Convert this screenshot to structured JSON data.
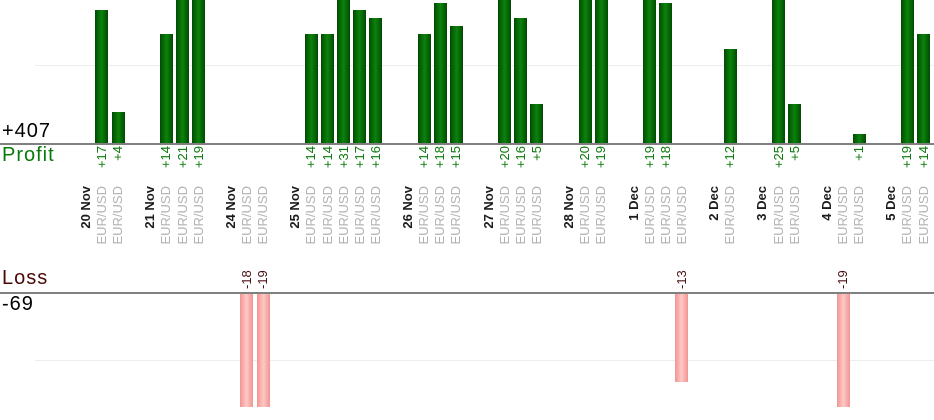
{
  "summary": {
    "profit_total": "+407",
    "profit_label": "Profit",
    "loss_label": "Loss",
    "loss_total": "-69"
  },
  "colors": {
    "profit_bar_edge": "#024a02",
    "profit_bar_mid": "#0b830b",
    "loss_bar_edge": "#f19494",
    "loss_bar_mid": "#fdc9c4",
    "profit_text": "#0a7a0a",
    "loss_value_text": "#471111",
    "loss_label_text": "#4c0808",
    "total_text": "#000000",
    "date_text": "#1c1c1c",
    "symbol_text": "#b2b2b2",
    "axis_line": "#808080",
    "gridline": "#ededed"
  },
  "chart_data": {
    "type": "bar",
    "layout": "dual panel: profit bars above shared category axis, loss bars below; rotated value and category labels; gridlines every 10 units",
    "grid_step": 10,
    "panels": {
      "profit": {
        "label": "Profit",
        "total": 407,
        "display_total": "+407"
      },
      "loss": {
        "label": "Loss",
        "total": -69,
        "display_total": "-69"
      }
    },
    "groups": [
      {
        "date": "20 Nov",
        "trades": [
          {
            "symbol": "EUR/USD",
            "value": 17
          },
          {
            "symbol": "EUR/USD",
            "value": 4
          }
        ]
      },
      {
        "date": "21 Nov",
        "trades": [
          {
            "symbol": "EUR/USD",
            "value": 14
          },
          {
            "symbol": "EUR/USD",
            "value": 21
          },
          {
            "symbol": "EUR/USD",
            "value": 19
          }
        ]
      },
      {
        "date": "24 Nov",
        "trades": [
          {
            "symbol": "EUR/USD",
            "value": -18
          },
          {
            "symbol": "EUR/USD",
            "value": -19
          }
        ]
      },
      {
        "date": "25 Nov",
        "trades": [
          {
            "symbol": "EUR/USD",
            "value": 14
          },
          {
            "symbol": "EUR/USD",
            "value": 14
          },
          {
            "symbol": "EUR/USD",
            "value": 31
          },
          {
            "symbol": "EUR/USD",
            "value": 17
          },
          {
            "symbol": "EUR/USD",
            "value": 16
          }
        ]
      },
      {
        "date": "26 Nov",
        "trades": [
          {
            "symbol": "EUR/USD",
            "value": 14
          },
          {
            "symbol": "EUR/USD",
            "value": 18
          },
          {
            "symbol": "EUR/USD",
            "value": 15
          }
        ]
      },
      {
        "date": "27 Nov",
        "trades": [
          {
            "symbol": "EUR/USD",
            "value": 20
          },
          {
            "symbol": "EUR/USD",
            "value": 16
          },
          {
            "symbol": "EUR/USD",
            "value": 5
          }
        ]
      },
      {
        "date": "28 Nov",
        "trades": [
          {
            "symbol": "EUR/USD",
            "value": 20
          },
          {
            "symbol": "EUR/USD",
            "value": 19
          }
        ]
      },
      {
        "date": "1 Dec",
        "trades": [
          {
            "symbol": "EUR/USD",
            "value": 19
          },
          {
            "symbol": "EUR/USD",
            "value": 18
          },
          {
            "symbol": "EUR/USD",
            "value": -13
          }
        ]
      },
      {
        "date": "2 Dec",
        "trades": [
          {
            "symbol": "EUR/USD",
            "value": 12
          }
        ]
      },
      {
        "date": "3 Dec",
        "trades": [
          {
            "symbol": "EUR/USD",
            "value": 25
          },
          {
            "symbol": "EUR/USD",
            "value": 5
          }
        ]
      },
      {
        "date": "4 Dec",
        "trades": [
          {
            "symbol": "EUR/USD",
            "value": -19
          },
          {
            "symbol": "EUR/USD",
            "value": 1
          }
        ]
      },
      {
        "date": "5 Dec",
        "trades": [
          {
            "symbol": "EUR/USD",
            "value": 19
          },
          {
            "symbol": "EUR/USD",
            "value": 14
          }
        ]
      }
    ]
  }
}
